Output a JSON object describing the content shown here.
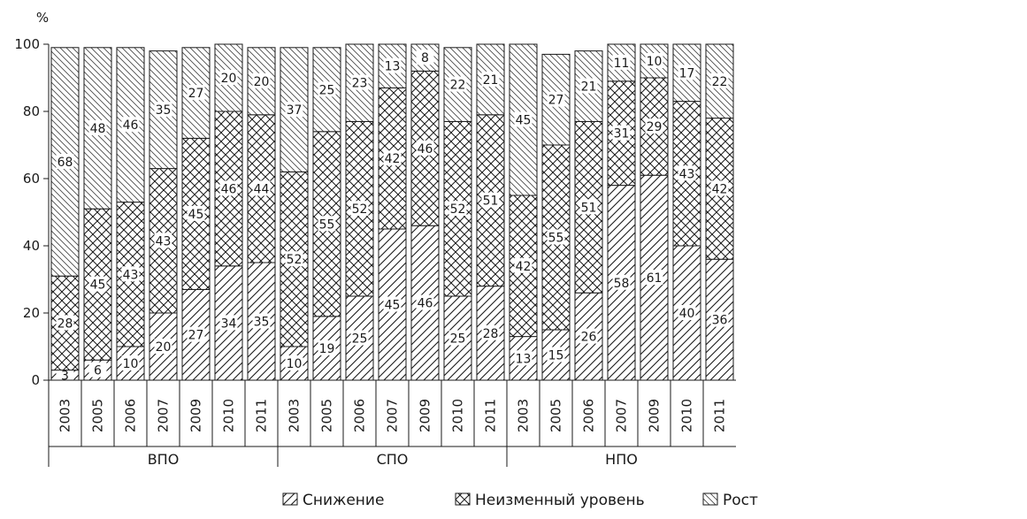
{
  "chart_data": {
    "type": "bar",
    "stacked": true,
    "ylabel": "%",
    "ylim": [
      0,
      100
    ],
    "yticks": [
      0,
      20,
      40,
      60,
      80,
      100
    ],
    "grid": false,
    "legend_position": "bottom",
    "groups": [
      "ВПО",
      "СПО",
      "НПО"
    ],
    "years": [
      "2003",
      "2005",
      "2006",
      "2007",
      "2009",
      "2010",
      "2011"
    ],
    "categories": [
      "ВПО 2003",
      "ВПО 2005",
      "ВПО 2006",
      "ВПО 2007",
      "ВПО 2009",
      "ВПО 2010",
      "ВПО 2011",
      "СПО 2003",
      "СПО 2005",
      "СПО 2006",
      "СПО 2007",
      "СПО 2009",
      "СПО 2010",
      "СПО 2011",
      "НПО 2003",
      "НПО 2005",
      "НПО 2006",
      "НПО 2007",
      "НПО 2009",
      "НПО 2010",
      "НПО 2011"
    ],
    "series": [
      {
        "name": "Снижение",
        "pattern": "diagonal-forward",
        "values": [
          3,
          6,
          10,
          20,
          27,
          34,
          35,
          10,
          19,
          25,
          45,
          46,
          25,
          28,
          13,
          15,
          26,
          58,
          61,
          40,
          36
        ]
      },
      {
        "name": "Неизменный уровень",
        "pattern": "crosshatch",
        "values": [
          28,
          45,
          43,
          43,
          45,
          46,
          44,
          52,
          55,
          52,
          42,
          46,
          52,
          51,
          42,
          55,
          51,
          31,
          29,
          43,
          42
        ]
      },
      {
        "name": "Рост",
        "pattern": "diagonal-back",
        "values": [
          68,
          48,
          46,
          35,
          27,
          20,
          20,
          37,
          25,
          23,
          13,
          8,
          22,
          21,
          45,
          27,
          21,
          11,
          10,
          17,
          22
        ]
      }
    ]
  }
}
